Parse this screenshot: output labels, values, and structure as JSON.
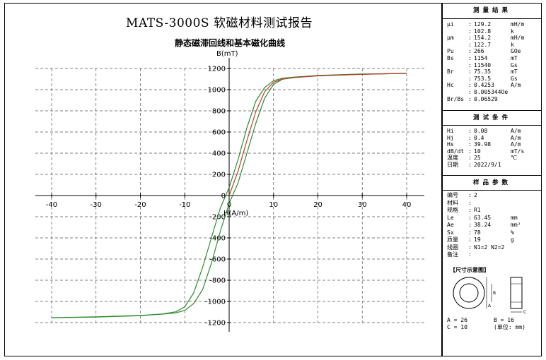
{
  "report_title": "MATS-3000S 软磁材料测试报告",
  "chart_data": [
    {
      "type": "line",
      "title": "静态磁滞回线和基本磁化曲线",
      "xlabel": "H(A/m)",
      "ylabel": "B(mT)",
      "xlim": [
        -40,
        40
      ],
      "ylim": [
        -1200,
        1200
      ],
      "x_ticks": [
        -40,
        -30,
        -20,
        -10,
        0,
        10,
        20,
        30,
        40
      ],
      "y_ticks": [
        -1200,
        -1000,
        -800,
        -600,
        -400,
        -200,
        0,
        200,
        400,
        600,
        800,
        1000,
        1200
      ],
      "grid": true,
      "series": [
        {
          "color": "#2e8b2e",
          "x": [
            -40,
            -30,
            -20,
            -15,
            -12,
            -10,
            -8,
            -6,
            -4,
            -2,
            0,
            2,
            4,
            6,
            8,
            10,
            12,
            15,
            20,
            30,
            40
          ],
          "y": [
            -1154,
            -1148,
            -1135,
            -1118,
            -1098,
            -1050,
            -920,
            -680,
            -400,
            -120,
            75,
            340,
            640,
            890,
            1020,
            1085,
            1108,
            1120,
            1133,
            1145,
            1154
          ]
        },
        {
          "color": "#2e8b2e",
          "x": [
            40,
            30,
            20,
            15,
            12,
            10,
            8,
            6,
            4,
            2,
            0,
            -2,
            -4,
            -6,
            -8,
            -10,
            -12,
            -15,
            -20,
            -30,
            -40
          ],
          "y": [
            1154,
            1148,
            1135,
            1118,
            1098,
            1050,
            920,
            680,
            400,
            120,
            -75,
            -340,
            -640,
            -890,
            -1020,
            -1085,
            -1108,
            -1120,
            -1133,
            -1145,
            -1154
          ]
        },
        {
          "color": "#c0392b",
          "x": [
            0,
            2,
            4,
            6,
            8,
            10,
            12,
            15,
            20,
            30,
            40
          ],
          "y": [
            0,
            230,
            520,
            790,
            980,
            1070,
            1100,
            1115,
            1130,
            1145,
            1154
          ]
        }
      ]
    }
  ],
  "results": {
    "header": "测量结果",
    "rows": [
      {
        "label": "μi",
        "value": "129.2",
        "unit": "mH/m"
      },
      {
        "label": "",
        "value": "102.8",
        "unit": "k"
      },
      {
        "label": "μm",
        "value": "154.2",
        "unit": "mH/m"
      },
      {
        "label": "",
        "value": "122.7",
        "unit": "k"
      },
      {
        "label": "Pu",
        "value": "266",
        "unit": "GOe"
      },
      {
        "label": "Bs",
        "value": "1154",
        "unit": "mT"
      },
      {
        "label": "",
        "value": "11540",
        "unit": "Gs"
      },
      {
        "label": "Br",
        "value": "75.35",
        "unit": "mT"
      },
      {
        "label": "",
        "value": "753.5",
        "unit": "Gs"
      },
      {
        "label": "Hc",
        "value": "0.4253",
        "unit": "A/m"
      },
      {
        "label": "",
        "value": "0.005344Oe",
        "unit": ""
      },
      {
        "label": "Br/Bs",
        "value": "0.06529",
        "unit": ""
      }
    ]
  },
  "conditions": {
    "header": "测试条件",
    "rows": [
      {
        "label": "Hi",
        "value": "0.08",
        "unit": "A/m"
      },
      {
        "label": "Hj",
        "value": "0.4",
        "unit": "A/m"
      },
      {
        "label": "Hs",
        "value": "39.98",
        "unit": "A/m"
      },
      {
        "label": "dB/dt",
        "value": "10",
        "unit": "mT/s"
      },
      {
        "label": "温度",
        "value": "25",
        "unit": "℃"
      },
      {
        "label": "日期",
        "value": "2022/9/1",
        "unit": ""
      }
    ]
  },
  "sample": {
    "header": "样品参数",
    "rows": [
      {
        "label": "编号",
        "value": "2",
        "unit": ""
      },
      {
        "label": "材料",
        "value": "",
        "unit": ""
      },
      {
        "label": "规格",
        "value": "R1",
        "unit": ""
      },
      {
        "label": "Le",
        "value": "63.45",
        "unit": "mm"
      },
      {
        "label": "Ae",
        "value": "38.24",
        "unit": "mm²"
      },
      {
        "label": "Sx",
        "value": "78",
        "unit": "%"
      },
      {
        "label": "质量",
        "value": "19",
        "unit": "g"
      },
      {
        "label": "线圈",
        "value": "N1=2 N2=2",
        "unit": ""
      },
      {
        "label": "备注",
        "value": "",
        "unit": ""
      }
    ]
  },
  "dimensions": {
    "title": "【尺寸示意图】",
    "diagram_labels": {
      "b": "B",
      "a": "A",
      "c": "C"
    },
    "a": "A = 26",
    "b": "B = 16",
    "c": "C = 10",
    "unit_note": "(单位: mm)"
  }
}
